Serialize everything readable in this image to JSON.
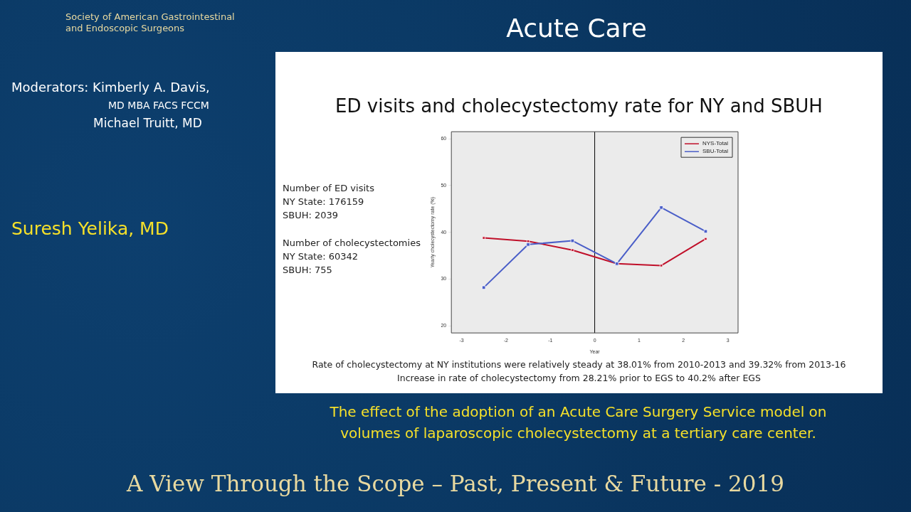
{
  "chart_data": {
    "type": "line",
    "title": "ED visits and cholecystectomy rate for NY and SBUH",
    "xlabel": "Year",
    "ylabel": "Yearly cholecystectomy rate (%)",
    "x": [
      -2.5,
      -1.5,
      -0.5,
      0.5,
      1.5,
      2.5
    ],
    "series": [
      {
        "name": "NYS-Total",
        "color": "#c0102a",
        "values": [
          38.8,
          38.1,
          36.2,
          33.3,
          32.9,
          38.6
        ]
      },
      {
        "name": "SBU-Total",
        "color": "#4a5ec8",
        "values": [
          28.2,
          37.4,
          38.2,
          33.3,
          45.3,
          40.2
        ]
      }
    ],
    "xlim": [
      -3.23,
      3.23
    ],
    "xticks": [
      -3,
      -2,
      -1,
      0,
      1,
      2,
      3
    ],
    "ylim": [
      18.5,
      61.5
    ],
    "yticks": [
      20,
      30,
      40,
      50,
      60
    ],
    "ref_lines": [
      {
        "axis": "x",
        "value": 0,
        "color": "#000000"
      }
    ],
    "grid": false,
    "legend": "top right",
    "marker": "square",
    "line_style": "solid",
    "annotations": [
      "Acute Care",
      "Society of American Gastrointestinal and Endoscopic Surgeons",
      "Moderators: Kimberly A. Davis,",
      "MD MBA FACS FCCM",
      "Michael Truitt, MD",
      "Suresh Yelika, MD",
      "Number of ED visits",
      "NY State: 176159",
      "SBUH: 2039",
      "Number of cholecystectomies",
      "NY State: 60342",
      "SBUH: 755",
      "Rate of cholecystectomy at NY institutions were relatively steady at 38.01% from 2010-2013 and 39.32% from 2013-16",
      "Increase in rate of cholecystectomy from 28.21% prior to EGS to 40.2% after EGS",
      "The effect of the adoption of an Acute Care Surgery Service model on",
      "volumes of laparoscopic cholecystectomy at a tertiary care center.",
      "A View Through the Scope – Past, Present & Future - 2019"
    ]
  }
}
